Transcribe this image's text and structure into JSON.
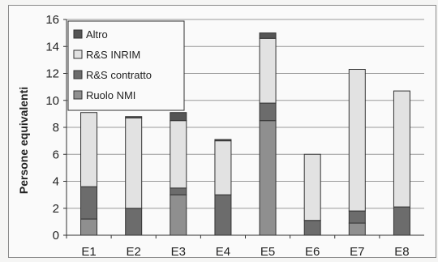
{
  "chart_data": {
    "type": "bar",
    "stacked": true,
    "categories": [
      "E1",
      "E2",
      "E3",
      "E4",
      "E5",
      "E6",
      "E7",
      "E8"
    ],
    "ylabel": "Persone equivalenti",
    "xlabel": "",
    "ylim": [
      0,
      16
    ],
    "yticks": [
      0,
      2,
      4,
      6,
      8,
      10,
      12,
      14,
      16
    ],
    "grid": true,
    "legend_position": "top-left",
    "series": [
      {
        "name": "Ruolo NMI",
        "color": "#8f8f8f",
        "values": [
          1.2,
          0,
          3.0,
          0,
          8.5,
          0,
          0.9,
          0
        ]
      },
      {
        "name": "R&S contratto",
        "color": "#6c6c6c",
        "values": [
          2.4,
          2.0,
          0.5,
          3.0,
          1.3,
          1.1,
          0.9,
          2.1
        ]
      },
      {
        "name": "R&S INRIM",
        "color": "#e2e2e2",
        "values": [
          5.5,
          6.7,
          5.0,
          4.0,
          4.8,
          4.9,
          10.5,
          8.6
        ]
      },
      {
        "name": "Altro",
        "color": "#555555",
        "values": [
          0,
          0.1,
          0.6,
          0.1,
          0.4,
          0,
          0,
          0
        ]
      }
    ],
    "legend_order": [
      "Altro",
      "R&S INRIM",
      "R&S contratto",
      "Ruolo NMI"
    ]
  }
}
